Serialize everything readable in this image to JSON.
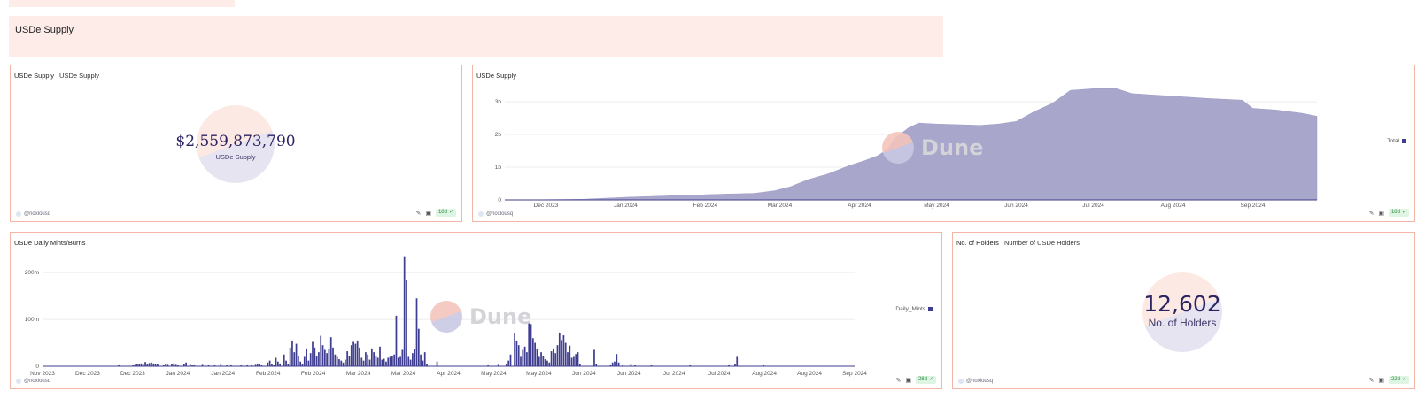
{
  "section": {
    "title": "USDe Supply"
  },
  "cards": {
    "supply_counter": {
      "title": "USDe Supply",
      "subtitle": "USDe Supply",
      "value": "$2,559,873,790",
      "label": "USDe Supply",
      "author": "@noxlousq",
      "age": "18d"
    },
    "supply_chart": {
      "title": "USDe Supply",
      "legend": "Total",
      "author": "@noxlousq",
      "age": "18d",
      "watermark": "Dune"
    },
    "mints_chart": {
      "title": "USDe Daily Mints/Burns",
      "legend": "Daily_Mints",
      "author": "@noxlousq",
      "age": "28d",
      "watermark": "Dune"
    },
    "holders_counter": {
      "title": "No. of Holders",
      "subtitle": "Number of USDe Holders",
      "value": "12,602",
      "label": "No. of Holders",
      "author": "@noxlousq",
      "age": "22d"
    }
  },
  "icons": {
    "edit": "pencil-icon",
    "embed": "camera-icon",
    "fresh": "check-circle-icon"
  },
  "colors": {
    "series": "#3f3d8f",
    "area": "#a9a6cc",
    "border": "#f3b6a6",
    "header_bg": "#fdece8"
  },
  "chart_data": [
    {
      "type": "area",
      "title": "USDe Supply",
      "series": [
        {
          "name": "Total"
        }
      ],
      "x_tick_labels": [
        "Dec 2023",
        "Jan 2024",
        "Feb 2024",
        "Mar 2024",
        "Apr 2024",
        "May 2024",
        "Jun 2024",
        "Jul 2024",
        "Aug 2024",
        "Sep 2024"
      ],
      "y_tick_labels": [
        "0",
        "1b",
        "2b",
        "3b"
      ],
      "ylim": [
        0,
        3300000000
      ],
      "grid": true,
      "legend_position": "right",
      "points": [
        [
          "2023-11-20",
          0
        ],
        [
          "2023-12-15",
          20000000
        ],
        [
          "2024-01-01",
          80000000
        ],
        [
          "2024-01-20",
          130000000
        ],
        [
          "2024-02-10",
          180000000
        ],
        [
          "2024-02-20",
          200000000
        ],
        [
          "2024-02-28",
          280000000
        ],
        [
          "2024-03-05",
          400000000
        ],
        [
          "2024-03-12",
          620000000
        ],
        [
          "2024-03-20",
          800000000
        ],
        [
          "2024-03-28",
          1050000000
        ],
        [
          "2024-04-03",
          1200000000
        ],
        [
          "2024-04-08",
          1350000000
        ],
        [
          "2024-04-12",
          1550000000
        ],
        [
          "2024-04-15",
          1900000000
        ],
        [
          "2024-04-20",
          2200000000
        ],
        [
          "2024-04-24",
          2350000000
        ],
        [
          "2024-05-01",
          2320000000
        ],
        [
          "2024-05-10",
          2300000000
        ],
        [
          "2024-05-18",
          2280000000
        ],
        [
          "2024-05-25",
          2320000000
        ],
        [
          "2024-06-01",
          2400000000
        ],
        [
          "2024-06-08",
          2700000000
        ],
        [
          "2024-06-15",
          2950000000
        ],
        [
          "2024-06-22",
          3350000000
        ],
        [
          "2024-07-01",
          3400000000
        ],
        [
          "2024-07-10",
          3400000000
        ],
        [
          "2024-07-16",
          3250000000
        ],
        [
          "2024-07-26",
          3200000000
        ],
        [
          "2024-08-05",
          3150000000
        ],
        [
          "2024-08-15",
          3100000000
        ],
        [
          "2024-08-28",
          3050000000
        ],
        [
          "2024-09-01",
          2800000000
        ],
        [
          "2024-09-10",
          2750000000
        ],
        [
          "2024-09-20",
          2650000000
        ],
        [
          "2024-09-26",
          2560000000
        ]
      ]
    },
    {
      "type": "bar",
      "title": "USDe Daily Mints/Burns",
      "series": [
        {
          "name": "Daily_Mints"
        }
      ],
      "x_tick_labels": [
        "Nov 2023",
        "Dec 2023",
        "Dec 2023",
        "Jan 2024",
        "Jan 2024",
        "Feb 2024",
        "Feb 2024",
        "Mar 2024",
        "Mar 2024",
        "Apr 2024",
        "May 2024",
        "May 2024",
        "Jun 2024",
        "Jun 2024",
        "Jul 2024",
        "Jul 2024",
        "Aug 2024",
        "Aug 2024",
        "Sep 2024"
      ],
      "y_tick_labels": [
        "0",
        "100m",
        "200m"
      ],
      "ylim": [
        0,
        240000000
      ],
      "grid": true,
      "legend_position": "right",
      "x_start": "2023-11-15",
      "values": [
        0,
        0,
        0,
        0,
        0,
        0,
        0,
        0,
        0,
        0,
        0,
        0,
        0,
        0,
        0,
        0,
        0,
        0,
        0,
        0,
        0,
        0,
        0,
        0,
        0,
        0,
        0,
        0,
        0,
        0,
        0,
        0,
        0,
        0,
        0,
        0,
        0,
        2000000,
        0,
        0,
        0,
        0,
        0,
        0,
        1500000,
        3000000,
        5000000,
        4000000,
        6000000,
        3000000,
        9000000,
        5000000,
        7000000,
        8000000,
        6000000,
        5000000,
        4000000,
        0,
        0,
        2000000,
        5000000,
        3000000,
        0,
        4000000,
        6000000,
        3000000,
        1000000,
        0,
        0,
        5000000,
        8000000,
        0,
        3000000,
        1000000,
        2000000,
        0,
        0,
        0,
        3000000,
        0,
        0,
        2000000,
        0,
        0,
        1000000,
        0,
        0,
        3000000,
        0,
        0,
        1000000,
        0,
        2000000,
        0,
        0,
        0,
        0,
        1000000,
        0,
        0,
        2000000,
        0,
        1000000,
        0,
        3000000,
        5000000,
        4000000,
        2000000,
        0,
        0,
        8000000,
        12000000,
        4000000,
        2000000,
        18000000,
        10000000,
        6000000,
        0,
        25000000,
        12000000,
        5000000,
        40000000,
        55000000,
        30000000,
        48000000,
        22000000,
        10000000,
        5000000,
        20000000,
        38000000,
        12000000,
        28000000,
        52000000,
        40000000,
        22000000,
        30000000,
        65000000,
        45000000,
        35000000,
        28000000,
        38000000,
        62000000,
        40000000,
        25000000,
        20000000,
        15000000,
        12000000,
        8000000,
        14000000,
        32000000,
        22000000,
        45000000,
        52000000,
        48000000,
        55000000,
        40000000,
        18000000,
        12000000,
        30000000,
        25000000,
        14000000,
        38000000,
        30000000,
        22000000,
        18000000,
        42000000,
        14000000,
        16000000,
        10000000,
        18000000,
        20000000,
        22000000,
        25000000,
        108000000,
        18000000,
        20000000,
        35000000,
        235000000,
        185000000,
        20000000,
        14000000,
        28000000,
        36000000,
        145000000,
        80000000,
        25000000,
        12000000,
        30000000,
        5000000,
        0,
        0,
        0,
        0,
        10000000,
        0,
        0,
        0,
        0,
        0,
        0,
        0,
        0,
        0,
        0,
        0,
        0,
        0,
        0,
        0,
        0,
        0,
        0,
        0,
        0,
        0,
        0,
        0,
        0,
        2000000,
        0,
        0,
        0,
        0,
        3000000,
        0,
        0,
        0,
        5000000,
        12000000,
        25000000,
        0,
        70000000,
        55000000,
        45000000,
        20000000,
        35000000,
        42000000,
        30000000,
        95000000,
        90000000,
        60000000,
        50000000,
        38000000,
        20000000,
        30000000,
        22000000,
        15000000,
        12000000,
        8000000,
        32000000,
        38000000,
        28000000,
        45000000,
        72000000,
        56000000,
        66000000,
        50000000,
        30000000,
        44000000,
        18000000,
        20000000,
        26000000,
        30000000,
        4000000,
        0,
        0,
        0,
        0,
        0,
        0,
        35000000,
        4000000,
        0,
        0,
        0,
        0,
        0,
        0,
        2000000,
        8000000,
        10000000,
        26000000,
        8000000,
        0,
        2000000,
        0,
        0,
        0,
        3000000,
        0,
        2000000,
        0,
        0,
        0,
        0,
        0,
        0,
        0,
        1000000,
        0,
        0,
        0,
        0,
        0,
        0,
        0,
        0,
        0,
        0,
        0,
        0,
        0,
        0,
        0,
        0,
        0,
        0,
        2000000,
        0,
        0,
        0,
        0,
        0,
        0,
        0,
        0,
        0,
        0,
        0,
        0,
        0,
        0,
        0,
        0,
        0,
        0,
        2000000,
        0,
        0,
        4000000,
        20000000,
        0,
        0,
        0,
        0,
        0,
        0,
        0,
        0,
        0,
        0,
        0,
        0,
        2000000,
        0,
        0,
        0,
        0,
        0,
        0,
        0,
        0,
        0,
        0,
        0,
        0,
        0,
        0,
        0,
        0,
        0,
        0,
        0,
        0,
        0,
        0,
        0,
        0,
        0,
        0,
        0,
        0,
        0,
        0,
        0,
        0,
        0,
        0,
        0,
        0,
        0,
        0,
        0,
        0,
        0,
        0,
        0,
        0
      ]
    }
  ]
}
